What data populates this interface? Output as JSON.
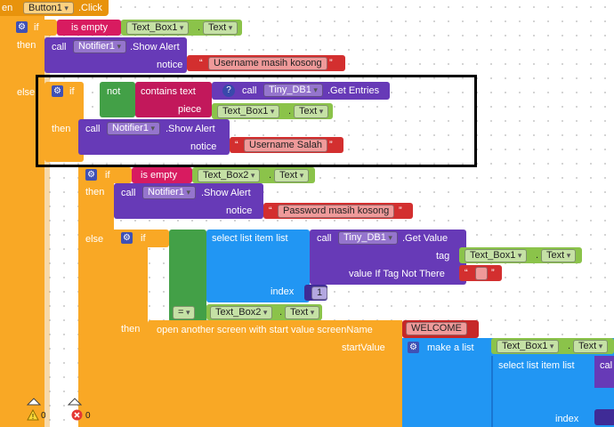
{
  "event": {
    "prefix": "en",
    "component": "Button1",
    "event": ".Click"
  },
  "kw": {
    "if": "if",
    "then": "then",
    "else": "else",
    "call": "call",
    "not": "not",
    "is_empty": "is empty",
    "contains_text": "contains  text",
    "piece": "piece",
    "notice": "notice",
    "show_alert": ".Show Alert",
    "get_entries": ".Get Entries",
    "get_value": ".Get Value",
    "tag": "tag",
    "value_if_tag_not_there": "value If Tag Not There",
    "select_list_item": "select list item  list",
    "index": "index",
    "equals": "=",
    "open_screen": "open another screen with start value  screenName",
    "start_value": "startValue",
    "make_a_list": "make a list",
    "text": "Text"
  },
  "components": {
    "text_box1": "Text_Box1",
    "text_box2": "Text_Box2",
    "notifier1": "Notifier1",
    "tiny_db1": "Tiny_DB1"
  },
  "strings": {
    "username_empty": "Username masih kosong",
    "username_wrong": "Username Salah",
    "password_empty": "Password masih kosong",
    "screen_name": "WELCOME",
    "index_value": "1"
  },
  "status": {
    "warnings": "0",
    "errors": "0"
  },
  "cut_off": {
    "call_fragment": "cal"
  },
  "colors": {
    "control": "#f9a825",
    "logic": "#43a047",
    "component": "#673ab7",
    "text": "#d32f2f",
    "list": "#2196f3",
    "highlight": "#000000"
  }
}
